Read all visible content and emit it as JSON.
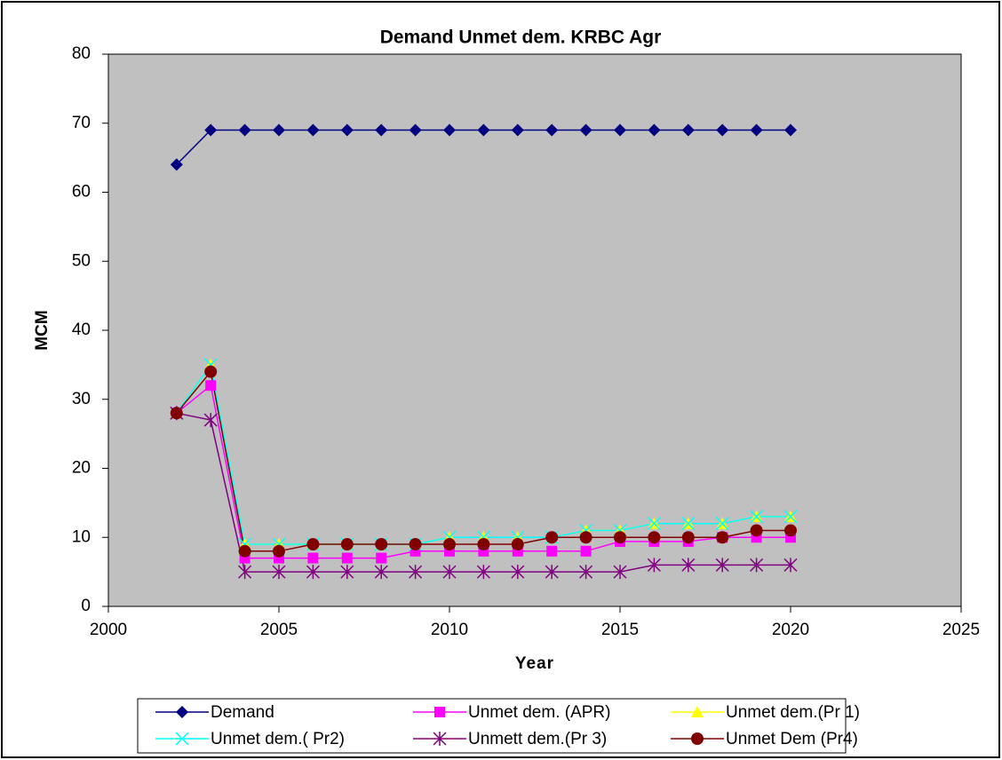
{
  "chart_data": {
    "type": "line",
    "title": "Demand  Unmet dem.  KRBC Agr",
    "xlabel": "Year",
    "ylabel": "MCM",
    "x": [
      2002,
      2003,
      2004,
      2005,
      2006,
      2007,
      2008,
      2009,
      2010,
      2011,
      2012,
      2013,
      2014,
      2015,
      2016,
      2017,
      2018,
      2019,
      2020
    ],
    "series": [
      {
        "name": "Demand",
        "color": "#000080",
        "marker": "diamond",
        "values": [
          64,
          69,
          69,
          69,
          69,
          69,
          69,
          69,
          69,
          69,
          69,
          69,
          69,
          69,
          69,
          69,
          69,
          69,
          69
        ]
      },
      {
        "name": "Unmet dem. (APR)",
        "color": "#ff00ff",
        "marker": "square",
        "values": [
          28,
          32,
          7,
          7,
          7,
          7,
          7,
          8,
          8,
          8,
          8,
          8,
          8,
          9.4,
          9.4,
          9.4,
          10,
          10,
          10
        ]
      },
      {
        "name": "Unmet dem.(Pr 1)",
        "color": "#ffff00",
        "marker": "triangle",
        "values": [
          28,
          35,
          9,
          9,
          9,
          9,
          9,
          9,
          10,
          10,
          10,
          10,
          11,
          11,
          12,
          12,
          12,
          13,
          13
        ]
      },
      {
        "name": "Unmet dem.( Pr2)",
        "color": "#00ffff",
        "marker": "x",
        "values": [
          28,
          35,
          9,
          9,
          9,
          9,
          9,
          9,
          10,
          10,
          10,
          10,
          11,
          11,
          12,
          12,
          12,
          13,
          13
        ]
      },
      {
        "name": "Unmett dem.(Pr 3)",
        "color": "#800080",
        "marker": "star",
        "values": [
          28,
          27,
          5,
          5,
          5,
          5,
          5,
          5,
          5,
          5,
          5,
          5,
          5,
          5,
          6,
          6,
          6,
          6,
          6
        ]
      },
      {
        "name": "Unmet Dem (Pr4)",
        "color": "#800000",
        "marker": "circle",
        "values": [
          28,
          34,
          8,
          8,
          9,
          9,
          9,
          9,
          9,
          9,
          9,
          10,
          10,
          10,
          10,
          10,
          10,
          11,
          11
        ]
      }
    ],
    "xlim": [
      2000,
      2025
    ],
    "xticks": [
      2000,
      2005,
      2010,
      2015,
      2020,
      2025
    ],
    "ylim": [
      0,
      80
    ],
    "yticks": [
      0,
      10,
      20,
      30,
      40,
      50,
      60,
      70,
      80
    ],
    "grid": false,
    "plot_background": "#c0c0c0",
    "legend": "bottom"
  }
}
